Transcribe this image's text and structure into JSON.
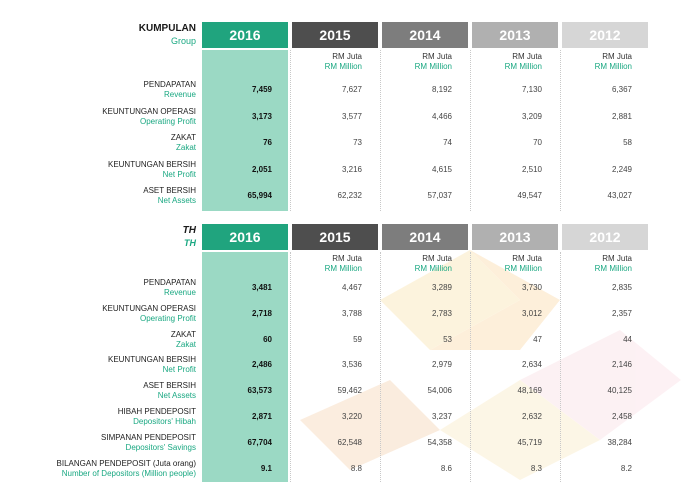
{
  "columns": [
    {
      "year": "2016",
      "color": "#20a47e"
    },
    {
      "year": "2015",
      "color": "#4e4e4e"
    },
    {
      "year": "2014",
      "color": "#7d7d7d"
    },
    {
      "year": "2013",
      "color": "#b0b0b0"
    },
    {
      "year": "2012",
      "color": "#d6d6d6"
    }
  ],
  "unit": {
    "ms": "RM Juta",
    "en": "RM Million"
  },
  "sections": [
    {
      "title_ms": "KUMPULAN",
      "title_en": "Group",
      "rows": [
        {
          "ms": "PENDAPATAN",
          "en": "Revenue",
          "values": [
            "7,459",
            "7,627",
            "8,192",
            "7,130",
            "6,367"
          ]
        },
        {
          "ms": "KEUNTUNGAN OPERASI",
          "en": "Operating Profit",
          "values": [
            "3,173",
            "3,577",
            "4,466",
            "3,209",
            "2,881"
          ]
        },
        {
          "ms": "ZAKAT",
          "en": "Zakat",
          "values": [
            "76",
            "73",
            "74",
            "70",
            "58"
          ]
        },
        {
          "ms": "KEUNTUNGAN BERSIH",
          "en": "Net Profit",
          "values": [
            "2,051",
            "3,216",
            "4,615",
            "2,510",
            "2,249"
          ]
        },
        {
          "ms": "ASET BERSIH",
          "en": "Net Assets",
          "values": [
            "65,994",
            "62,232",
            "57,037",
            "49,547",
            "43,027"
          ]
        }
      ]
    },
    {
      "title_ms": "TH",
      "title_en": "TH",
      "rows": [
        {
          "ms": "PENDAPATAN",
          "en": "Revenue",
          "values": [
            "3,481",
            "4,467",
            "3,289",
            "3,730",
            "2,835"
          ]
        },
        {
          "ms": "KEUNTUNGAN OPERASI",
          "en": "Operating Profit",
          "values": [
            "2,718",
            "3,788",
            "2,783",
            "3,012",
            "2,357"
          ]
        },
        {
          "ms": "ZAKAT",
          "en": "Zakat",
          "values": [
            "60",
            "59",
            "53",
            "47",
            "44"
          ]
        },
        {
          "ms": "KEUNTUNGAN BERSIH",
          "en": "Net Profit",
          "values": [
            "2,486",
            "3,536",
            "2,979",
            "2,634",
            "2,146"
          ]
        },
        {
          "ms": "ASET BERSIH",
          "en": "Net Assets",
          "values": [
            "63,573",
            "59,462",
            "54,006",
            "48,169",
            "40,125"
          ]
        },
        {
          "ms": "HIBAH PENDEPOSIT",
          "en": "Depositors' Hibah",
          "values": [
            "2,871",
            "3,220",
            "3,237",
            "2,632",
            "2,458"
          ]
        },
        {
          "ms": "SIMPANAN PENDEPOSIT",
          "en": "Depositors' Savings",
          "values": [
            "67,704",
            "62,548",
            "54,358",
            "45,719",
            "38,284"
          ]
        },
        {
          "ms": "BILANGAN PENDEPOSIT (Juta orang)",
          "en": "Number of Depositors (Million people)",
          "values": [
            "9.1",
            "8.8",
            "8.6",
            "8.3",
            "8.2"
          ]
        }
      ]
    }
  ]
}
